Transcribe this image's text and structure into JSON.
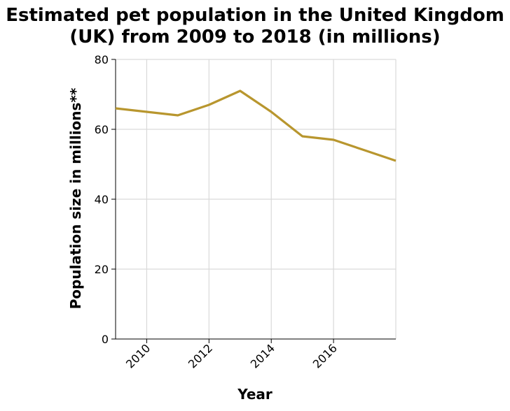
{
  "chart_data": {
    "type": "line",
    "title_lines": [
      "Estimated pet population in the United Kingdom",
      "(UK) from 2009 to 2018 (in millions)"
    ],
    "xlabel": "Year",
    "ylabel": "Population size in millions**",
    "xlim": [
      2009,
      2018
    ],
    "ylim": [
      0,
      80
    ],
    "xticks": [
      2010,
      2012,
      2014,
      2016
    ],
    "yticks": [
      0,
      20,
      40,
      60,
      80
    ],
    "grid": true,
    "series": [
      {
        "color": "#b8962e",
        "x": [
          2009,
          2010,
          2011,
          2012,
          2013,
          2014,
          2015,
          2016,
          2017,
          2018
        ],
        "y": [
          66,
          65,
          64,
          67,
          71,
          65,
          58,
          57,
          54,
          51
        ]
      }
    ]
  }
}
